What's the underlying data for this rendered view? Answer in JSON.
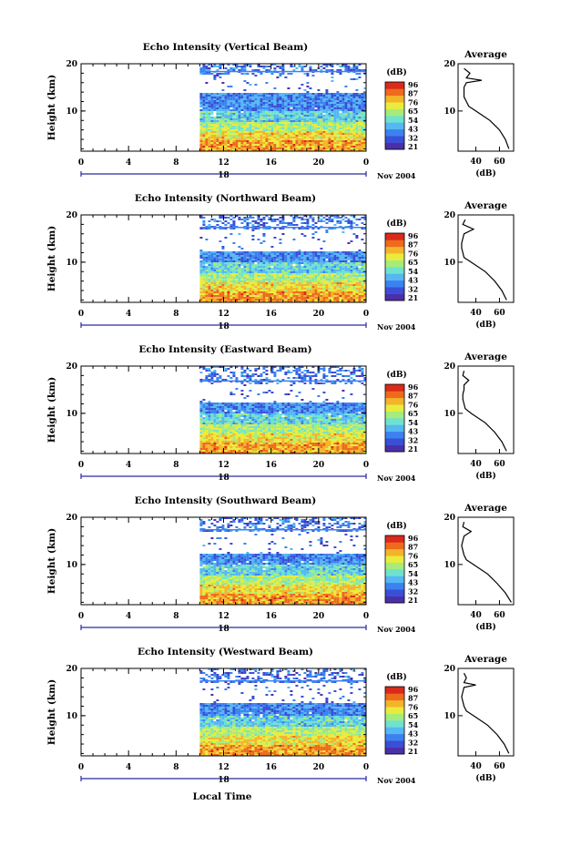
{
  "footer": {
    "x_label": "Local Time"
  },
  "colorbar": {
    "unit": "(dB)",
    "tick_labels": [
      "96",
      "87",
      "76",
      "65",
      "54",
      "43",
      "32",
      "21"
    ],
    "colors": [
      "#4b2fa8",
      "#3a4fd6",
      "#3b82f0",
      "#55b8f2",
      "#6fe2cf",
      "#a6ec7a",
      "#e9ec3c",
      "#f4b42a",
      "#ee6a1c",
      "#d92a1a"
    ]
  },
  "chart_data": [
    {
      "type": "heatmap",
      "title": "Echo Intensity (Vertical Beam)",
      "ylabel": "Height (km)",
      "x_ticks": [
        "0",
        "4",
        "8",
        "12",
        "16",
        "20",
        "0"
      ],
      "date_tick": "18",
      "date_label": "Nov 2004",
      "xlim": [
        0,
        24
      ],
      "ylim": [
        1.5,
        20
      ],
      "y_ticks": [
        "20",
        "10"
      ],
      "data_start_hour": 10,
      "clear_band_km": [
        14,
        18
      ],
      "zlim": [
        21,
        96
      ],
      "profile": {
        "title": "Average",
        "xlabel": "(dB)",
        "x_ticks": [
          "40",
          "60"
        ],
        "y_ticks": [
          "20",
          "10"
        ],
        "heights_km": [
          2,
          4,
          6,
          8,
          10,
          11,
          12,
          13,
          14,
          15,
          16,
          16.5,
          17,
          18,
          19
        ],
        "values_db": [
          68,
          65,
          60,
          52,
          40,
          34,
          32,
          30,
          30,
          30,
          32,
          45,
          32,
          35,
          30
        ]
      }
    },
    {
      "type": "heatmap",
      "title": "Echo Intensity (Northward Beam)",
      "ylabel": "Height (km)",
      "x_ticks": [
        "0",
        "4",
        "8",
        "12",
        "16",
        "20",
        "0"
      ],
      "date_tick": "18",
      "date_label": "Nov 2004",
      "xlim": [
        0,
        24
      ],
      "ylim": [
        1.5,
        20
      ],
      "y_ticks": [
        "20",
        "10"
      ],
      "data_start_hour": 10,
      "clear_band_km": [
        12.5,
        17
      ],
      "zlim": [
        21,
        96
      ],
      "profile": {
        "title": "Average",
        "xlabel": "(dB)",
        "x_ticks": [
          "40",
          "60"
        ],
        "y_ticks": [
          "20",
          "10"
        ],
        "heights_km": [
          2,
          4,
          6,
          8,
          10,
          11,
          12,
          13,
          14,
          15,
          16,
          17,
          18,
          19
        ],
        "values_db": [
          66,
          62,
          56,
          48,
          36,
          30,
          29,
          28,
          28,
          29,
          30,
          38,
          29,
          31
        ]
      }
    },
    {
      "type": "heatmap",
      "title": "Echo Intensity (Eastward Beam)",
      "ylabel": "Height (km)",
      "x_ticks": [
        "0",
        "4",
        "8",
        "12",
        "16",
        "20",
        "0"
      ],
      "date_tick": "18",
      "date_label": "Nov 2004",
      "xlim": [
        0,
        24
      ],
      "ylim": [
        1.5,
        20
      ],
      "y_ticks": [
        "20",
        "10"
      ],
      "data_start_hour": 10,
      "clear_band_km": [
        12.5,
        16.5
      ],
      "zlim": [
        21,
        96
      ],
      "profile": {
        "title": "Average",
        "xlabel": "(dB)",
        "x_ticks": [
          "40",
          "60"
        ],
        "y_ticks": [
          "20",
          "10"
        ],
        "heights_km": [
          2,
          4,
          6,
          8,
          10,
          11,
          12,
          13,
          14,
          15,
          16,
          17,
          18,
          19
        ],
        "values_db": [
          66,
          62,
          56,
          48,
          36,
          31,
          30,
          29,
          29,
          30,
          30,
          34,
          29,
          30
        ]
      }
    },
    {
      "type": "heatmap",
      "title": "Echo Intensity (Southward Beam)",
      "ylabel": "Height (km)",
      "x_ticks": [
        "0",
        "4",
        "8",
        "12",
        "16",
        "20",
        "0"
      ],
      "date_tick": "18",
      "date_label": "Nov 2004",
      "xlim": [
        0,
        24
      ],
      "ylim": [
        1.5,
        20
      ],
      "y_ticks": [
        "20",
        "10"
      ],
      "data_start_hour": 10,
      "clear_band_km": [
        12.5,
        17
      ],
      "zlim": [
        21,
        96
      ],
      "profile": {
        "title": "Average",
        "xlabel": "(dB)",
        "x_ticks": [
          "40",
          "60"
        ],
        "y_ticks": [
          "20",
          "10"
        ],
        "heights_km": [
          2,
          4,
          6,
          8,
          10,
          11,
          12,
          13,
          14,
          15,
          16,
          17,
          18,
          19
        ],
        "values_db": [
          70,
          65,
          58,
          50,
          38,
          32,
          30,
          29,
          28,
          29,
          30,
          36,
          29,
          30
        ]
      }
    },
    {
      "type": "heatmap",
      "title": "Echo Intensity (Westward Beam)",
      "ylabel": "Height (km)",
      "x_ticks": [
        "0",
        "4",
        "8",
        "12",
        "16",
        "20",
        "0"
      ],
      "date_tick": "18",
      "date_label": "Nov 2004",
      "xlim": [
        0,
        24
      ],
      "ylim": [
        1.5,
        20
      ],
      "y_ticks": [
        "20",
        "10"
      ],
      "data_start_hour": 10,
      "clear_band_km": [
        13,
        17
      ],
      "zlim": [
        21,
        96
      ],
      "profile": {
        "title": "Average",
        "xlabel": "(dB)",
        "x_ticks": [
          "40",
          "60"
        ],
        "y_ticks": [
          "20",
          "10"
        ],
        "heights_km": [
          2,
          4,
          6,
          8,
          10,
          11,
          12,
          13,
          14,
          15,
          16,
          16.5,
          17,
          18,
          19
        ],
        "values_db": [
          68,
          64,
          58,
          50,
          38,
          32,
          30,
          29,
          28,
          29,
          30,
          40,
          30,
          32,
          30
        ]
      }
    }
  ]
}
